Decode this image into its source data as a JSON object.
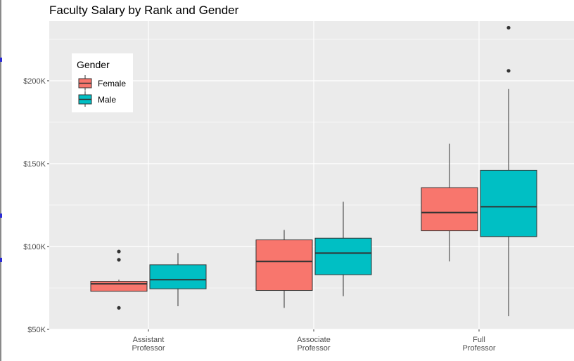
{
  "chart_data": {
    "type": "boxplot",
    "title": "Faculty Salary by Rank and Gender",
    "xlabel": "",
    "ylabel": "",
    "categories": [
      "Assistant\nProfessor",
      "Associate\nProfessor",
      "Full\nProfessor"
    ],
    "ylim": [
      50000,
      236000
    ],
    "y_ticks": [
      50000,
      100000,
      150000,
      200000
    ],
    "y_tick_labels": [
      "$50K",
      "$100K",
      "$150K",
      "$200K"
    ],
    "grid": true,
    "legend": {
      "title": "Gender",
      "placement": "top-left inside",
      "entries": [
        {
          "name": "Female",
          "color": "#F8766D"
        },
        {
          "name": "Male",
          "color": "#00BFC4"
        }
      ]
    },
    "series": [
      {
        "name": "Female",
        "color": "#F8766D",
        "boxes": [
          {
            "min": 73000,
            "q1": 73000,
            "median": 77500,
            "q3": 79000,
            "max": 80000,
            "outliers": [
              63000,
              92000,
              97000
            ]
          },
          {
            "min": 63000,
            "q1": 73500,
            "median": 91000,
            "q3": 104000,
            "max": 110000,
            "outliers": []
          },
          {
            "min": 91000,
            "q1": 109500,
            "median": 120500,
            "q3": 135500,
            "max": 162000,
            "outliers": []
          }
        ]
      },
      {
        "name": "Male",
        "color": "#00BFC4",
        "boxes": [
          {
            "min": 64000,
            "q1": 74500,
            "median": 80000,
            "q3": 89000,
            "max": 96000,
            "outliers": []
          },
          {
            "min": 70000,
            "q1": 83000,
            "median": 96000,
            "q3": 105000,
            "max": 127000,
            "outliers": []
          },
          {
            "min": 58000,
            "q1": 106000,
            "median": 124000,
            "q3": 146000,
            "max": 195000,
            "outliers": [
              206000,
              232000
            ]
          }
        ]
      }
    ]
  },
  "colors": {
    "panel_background": "#EBEBEB",
    "grid_major": "#FFFFFF",
    "box_outline": "#333333",
    "text_axis": "#4D4D4D"
  }
}
